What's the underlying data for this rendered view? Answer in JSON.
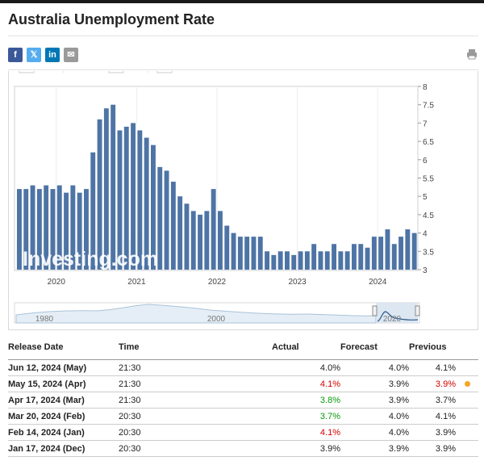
{
  "page": {
    "title": "Australia Unemployment Rate"
  },
  "share": {
    "facebook": "f",
    "twitter": "𝕏",
    "linkedin": "in",
    "email": "✉"
  },
  "colors": {
    "bar": "#4e74a5",
    "up": "#d40000",
    "down": "#0a9a0a",
    "dot": "#f5a623"
  },
  "chart_data": {
    "type": "bar",
    "title": "Australia Unemployment Rate",
    "ylim": [
      3,
      8
    ],
    "yticks": [
      "3",
      "3.5",
      "4",
      "4.5",
      "5",
      "5.5",
      "6",
      "6.5",
      "7",
      "7.5",
      "8"
    ],
    "xticks": [
      {
        "label": "2020",
        "index": 5.5
      },
      {
        "label": "2021",
        "index": 17.5
      },
      {
        "label": "2022",
        "index": 29.5
      },
      {
        "label": "2023",
        "index": 41.5
      },
      {
        "label": "2024",
        "index": 53.5
      }
    ],
    "values": [
      5.2,
      5.2,
      5.3,
      5.2,
      5.3,
      5.2,
      5.3,
      5.1,
      5.3,
      5.1,
      5.2,
      6.2,
      7.1,
      7.4,
      7.5,
      6.8,
      6.9,
      7.0,
      6.8,
      6.6,
      6.4,
      5.8,
      5.7,
      5.4,
      5.0,
      4.8,
      4.6,
      4.5,
      4.6,
      5.2,
      4.6,
      4.2,
      4.0,
      3.9,
      3.9,
      3.9,
      3.9,
      3.5,
      3.4,
      3.5,
      3.5,
      3.4,
      3.5,
      3.5,
      3.7,
      3.5,
      3.5,
      3.7,
      3.5,
      3.5,
      3.7,
      3.7,
      3.6,
      3.9,
      3.9,
      4.1,
      3.7,
      3.9,
      4.1,
      4.0
    ],
    "overview_ticks": [
      "1980",
      "2000",
      "2020"
    ],
    "watermark": "Investing.com"
  },
  "table": {
    "headers": {
      "date": "Release Date",
      "time": "Time",
      "actual": "Actual",
      "forecast": "Forecast",
      "previous": "Previous"
    },
    "rows": [
      {
        "date": "Jun 12, 2024 (May)",
        "time": "21:30",
        "actual": "4.0%",
        "forecast": "4.0%",
        "previous": "4.1%",
        "actual_dir": "",
        "previous_dir": "",
        "dot": false
      },
      {
        "date": "May 15, 2024 (Apr)",
        "time": "21:30",
        "actual": "4.1%",
        "forecast": "3.9%",
        "previous": "3.9%",
        "actual_dir": "up",
        "previous_dir": "up",
        "dot": true
      },
      {
        "date": "Apr 17, 2024 (Mar)",
        "time": "21:30",
        "actual": "3.8%",
        "forecast": "3.9%",
        "previous": "3.7%",
        "actual_dir": "down",
        "previous_dir": "",
        "dot": false
      },
      {
        "date": "Mar 20, 2024 (Feb)",
        "time": "20:30",
        "actual": "3.7%",
        "forecast": "4.0%",
        "previous": "4.1%",
        "actual_dir": "down",
        "previous_dir": "",
        "dot": false
      },
      {
        "date": "Feb 14, 2024 (Jan)",
        "time": "20:30",
        "actual": "4.1%",
        "forecast": "4.0%",
        "previous": "3.9%",
        "actual_dir": "up",
        "previous_dir": "",
        "dot": false
      },
      {
        "date": "Jan 17, 2024 (Dec)",
        "time": "20:30",
        "actual": "3.9%",
        "forecast": "3.9%",
        "previous": "3.9%",
        "actual_dir": "",
        "previous_dir": "",
        "dot": false
      }
    ]
  }
}
